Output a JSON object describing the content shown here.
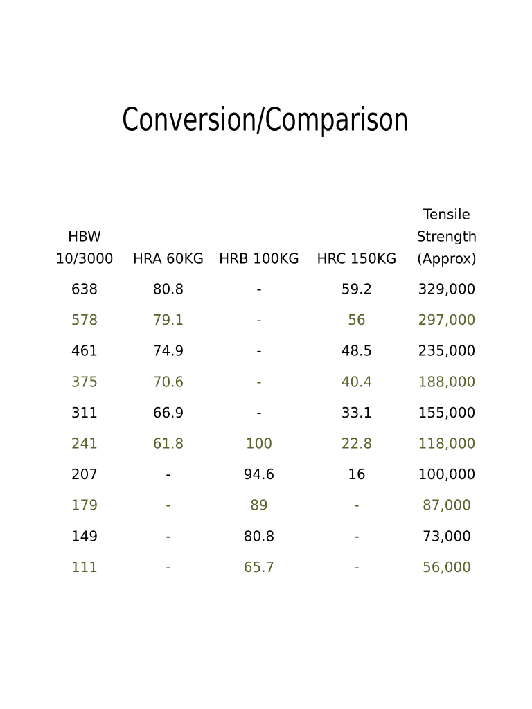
{
  "title": "Conversion/Comparison",
  "table": {
    "headers": [
      [
        "HBW",
        "10/3000"
      ],
      [
        "HRA 60KG"
      ],
      [
        "HRB 100KG"
      ],
      [
        "HRC 150KG"
      ],
      [
        "Tensile",
        "Strength",
        "(Approx)"
      ]
    ],
    "rows": [
      [
        "638",
        "80.8",
        "-",
        "59.2",
        "329,000"
      ],
      [
        "578",
        "79.1",
        "-",
        "56",
        "297,000"
      ],
      [
        "461",
        "74.9",
        "-",
        "48.5",
        "235,000"
      ],
      [
        "375",
        "70.6",
        "-",
        "40.4",
        "188,000"
      ],
      [
        "311",
        "66.9",
        "-",
        "33.1",
        "155,000"
      ],
      [
        "241",
        "61.8",
        "100",
        "22.8",
        "118,000"
      ],
      [
        "207",
        "-",
        "94.6",
        "16",
        "100,000"
      ],
      [
        "179",
        "-",
        "89",
        "-",
        "87,000"
      ],
      [
        "149",
        "-",
        "80.8",
        "-",
        "73,000"
      ],
      [
        "111",
        "-",
        "65.7",
        "-",
        "56,000"
      ]
    ]
  }
}
